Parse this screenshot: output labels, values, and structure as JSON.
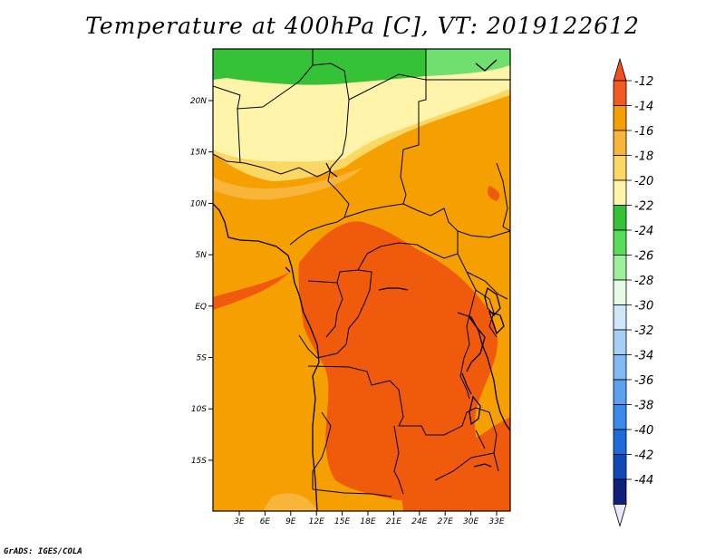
{
  "title": "Temperature at 400hPa [C], VT: 2019122612",
  "credit": "GrADS: IGES/COLA",
  "map": {
    "lat_ticks": [
      "20N",
      "15N",
      "10N",
      "5N",
      "EQ",
      "5S",
      "10S",
      "15S"
    ],
    "lon_ticks": [
      "3E",
      "6E",
      "9E",
      "12E",
      "15E",
      "18E",
      "21E",
      "24E",
      "27E",
      "30E",
      "33E"
    ]
  },
  "colorbar": {
    "labels": [
      "-12",
      "-14",
      "-16",
      "-18",
      "-20",
      "-22",
      "-24",
      "-26",
      "-28",
      "-30",
      "-32",
      "-34",
      "-36",
      "-38",
      "-40",
      "-42",
      "-44"
    ],
    "colors": [
      "#f35a22",
      "#f5a000",
      "#f8b53a",
      "#fbd764",
      "#fff4a9",
      "#36c236",
      "#57dd57",
      "#9cf09c",
      "#e5fbe5",
      "#cfe5fa",
      "#a6cef7",
      "#80b9f4",
      "#5aa1f0",
      "#3a89ec",
      "#1e6bd9",
      "#0f49b7",
      "#101f7a"
    ],
    "over_color": "#f25020",
    "under_color": "#e8e8f8"
  },
  "colors": {
    "hot": "#f05a0c",
    "orange": "#f5a000",
    "lightorange": "#f8b53a",
    "yellow": "#fbd764",
    "paleyellow": "#fff4a9",
    "green": "#36c236",
    "lightgreen": "#6fe06f"
  }
}
